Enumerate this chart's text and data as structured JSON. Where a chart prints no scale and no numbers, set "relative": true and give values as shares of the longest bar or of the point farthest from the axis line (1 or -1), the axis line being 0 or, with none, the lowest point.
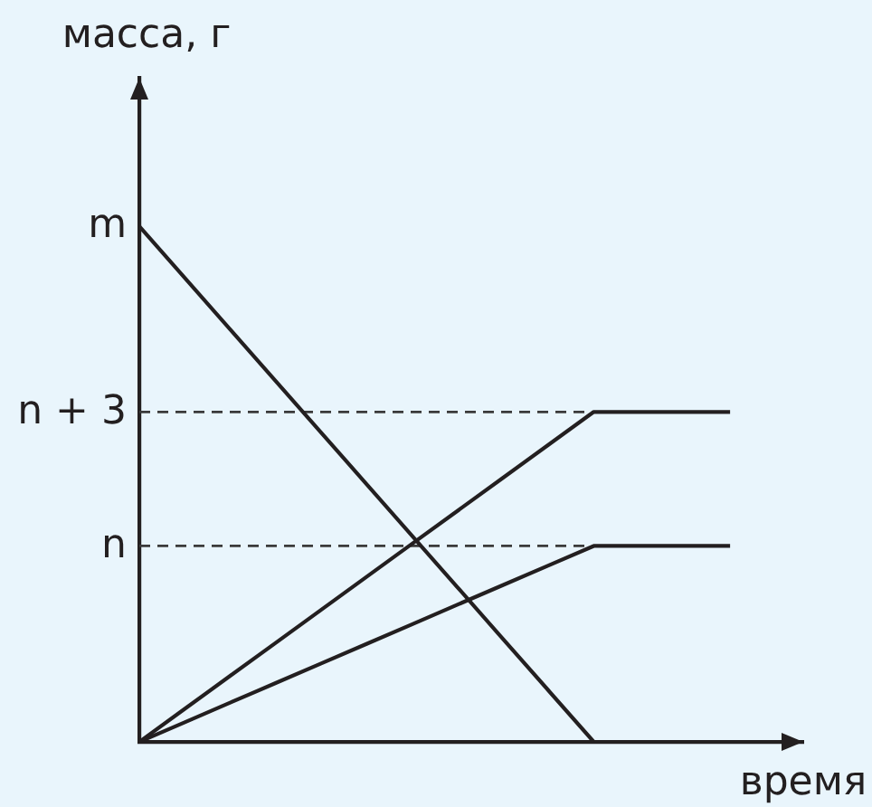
{
  "chart_data": {
    "type": "line",
    "xlabel": "время",
    "ylabel": "масса, г",
    "relative": true,
    "marker": "none",
    "categories": [
      null,
      null,
      null,
      null,
      null,
      null,
      null,
      null,
      null,
      null,
      null,
      null,
      null,
      null
    ],
    "series": [
      {
        "color": "#231f20",
        "values": [
          1,
          0.9,
          0.8,
          0.7,
          0.6,
          0.5,
          0.4,
          0.3,
          0.2,
          0.1,
          0,
          null,
          null,
          null
        ]
      },
      {
        "color": "#231f20",
        "values": [
          0,
          0.064,
          0.128,
          0.192,
          0.256,
          0.32,
          0.384,
          0.448,
          0.512,
          0.576,
          0.64,
          0.64,
          0.64,
          0.64
        ]
      },
      {
        "color": "#231f20",
        "values": [
          0,
          0.038,
          0.076,
          0.114,
          0.152,
          0.19,
          0.228,
          0.266,
          0.304,
          0.342,
          0.38,
          0.38,
          0.38,
          0.38
        ]
      }
    ],
    "ref_lines": [
      {
        "axis": "y",
        "value": 0.64,
        "label": "n + 3",
        "color": "#3a3a3a",
        "line_style": "dashed"
      },
      {
        "axis": "y",
        "value": 0.38,
        "label": "n",
        "color": "#3a3a3a",
        "line_style": "dashed"
      }
    ],
    "annotations": [
      "m"
    ]
  }
}
